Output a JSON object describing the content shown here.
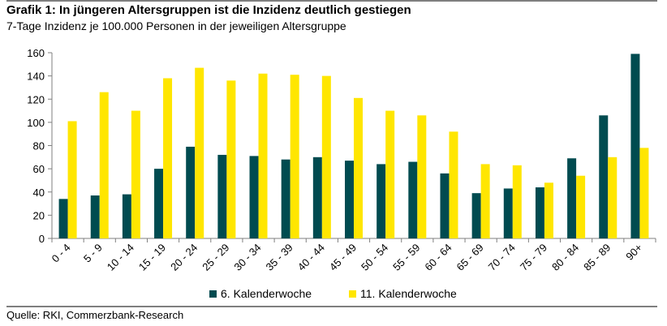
{
  "header": {
    "title": "Grafik 1: In jüngeren Altersgruppen ist die Inzidenz deutlich gestiegen",
    "subtitle": "7-Tage Inzidenz je 100.000 Personen in der jeweiligen Altersgruppe"
  },
  "footer": {
    "source": "Quelle: RKI, Commerzbank-Research"
  },
  "chart_data": {
    "type": "bar",
    "title": "Grafik 1: In jüngeren Altersgruppen ist die Inzidenz deutlich gestiegen",
    "subtitle": "7-Tage Inzidenz je 100.000 Personen in der jeweiligen Altersgruppe",
    "xlabel": "",
    "ylabel": "",
    "ylim": [
      0,
      160
    ],
    "yticks": [
      0,
      20,
      40,
      60,
      80,
      100,
      120,
      140,
      160
    ],
    "grid": false,
    "legend_position": "bottom",
    "categories": [
      "0 - 4",
      "5 - 9",
      "10 - 14",
      "15 - 19",
      "20 - 24",
      "25 - 29",
      "30 - 34",
      "35 - 39",
      "40 - 44",
      "45 - 49",
      "50 - 54",
      "55 - 59",
      "60 - 64",
      "65 - 69",
      "70 - 74",
      "75 - 79",
      "80 - 84",
      "85 - 89",
      "90+"
    ],
    "series": [
      {
        "name": "6. Kalenderwoche",
        "color": "#004b50",
        "values": [
          34,
          37,
          38,
          60,
          79,
          72,
          71,
          68,
          70,
          67,
          64,
          66,
          56,
          39,
          43,
          44,
          69,
          106,
          159
        ]
      },
      {
        "name": "11. Kalenderwoche",
        "color": "#ffe600",
        "values": [
          101,
          126,
          110,
          138,
          147,
          136,
          142,
          141,
          140,
          121,
          110,
          106,
          92,
          64,
          63,
          48,
          54,
          70,
          78
        ]
      }
    ]
  }
}
